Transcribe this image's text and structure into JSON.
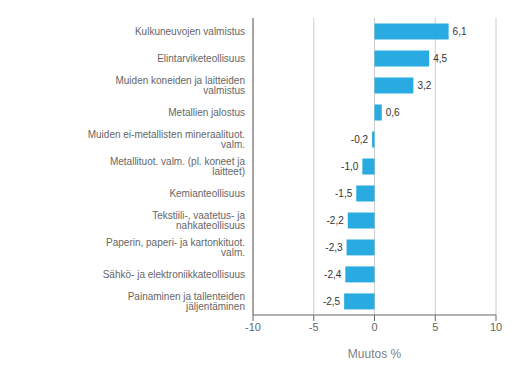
{
  "chart_data": {
    "type": "bar",
    "orientation": "horizontal",
    "xlabel": "Muutos %",
    "categories": [
      "Painaminen ja tallenteiden jäljentäminen",
      "Sähkö- ja elektroniikkateollisuus",
      "Paperin, paperi- ja kartonkituot. valm.",
      "Tekstiili-, vaatetus- ja nahkateollisuus",
      "Kemianteollisuus",
      "Metallituot. valm. (pl. koneet ja laitteet)",
      "Muiden ei-metallisten mineraalituot. valm.",
      "Metallien jalostus",
      "Muiden koneiden ja laitteiden valmistus",
      "Elintarviketeollisuus",
      "Kulkuneuvojen valmistus"
    ],
    "values": [
      -2.5,
      -2.4,
      -2.3,
      -2.2,
      -1.5,
      -1.0,
      -0.2,
      0.6,
      3.2,
      4.5,
      6.1
    ],
    "value_labels": [
      "-2,5",
      "-2,4",
      "-2,3",
      "-2,2",
      "-1,5",
      "-1,0",
      "-0,2",
      "0,6",
      "3,2",
      "4,5",
      "6,1"
    ],
    "color": "#29abe2",
    "xlim": [
      -10,
      10
    ],
    "xticks": [
      -10,
      -5,
      0,
      5,
      10
    ],
    "grid": true,
    "data_labels": true
  }
}
